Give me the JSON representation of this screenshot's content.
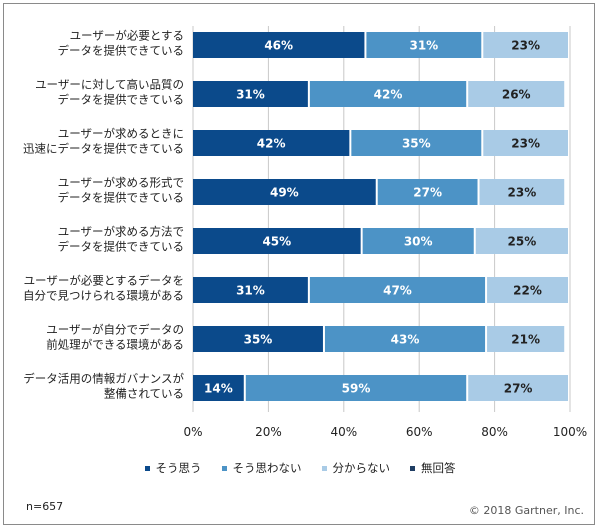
{
  "chart_data": {
    "type": "bar",
    "orientation": "horizontal",
    "stacked": true,
    "categories": [
      [
        "ユーザーが必要とする",
        "データを提供できている"
      ],
      [
        "ユーザーに対して高い品質の",
        "データを提供できている"
      ],
      [
        "ユーザーが求めるときに",
        "迅速にデータを提供できている"
      ],
      [
        "ユーザーが求める形式で",
        "データを提供できている"
      ],
      [
        "ユーザーが求める方法で",
        "データを提供できている"
      ],
      [
        "ユーザーが必要とするデータを",
        "自分で見つけられる環境がある"
      ],
      [
        "ユーザーが自分でデータの",
        "前処理ができる環境がある"
      ],
      [
        "データ活用の情報ガバナンスが",
        "整備されている"
      ]
    ],
    "series": [
      {
        "name": "そう思う",
        "color": "#0b4a8b",
        "label_color": "#ffffff",
        "values": [
          46,
          31,
          42,
          49,
          45,
          31,
          35,
          14
        ]
      },
      {
        "name": "そう思わない",
        "color": "#4c93c6",
        "label_color": "#ffffff",
        "values": [
          31,
          42,
          35,
          27,
          30,
          47,
          43,
          59
        ]
      },
      {
        "name": "分からない",
        "color": "#a9cbe6",
        "label_color": "#222222",
        "values": [
          23,
          26,
          23,
          23,
          25,
          22,
          21,
          27
        ]
      },
      {
        "name": "無回答",
        "color": "#1f3d63",
        "label_color": "#ffffff",
        "values": [
          0,
          0,
          0,
          0,
          0,
          0,
          0,
          0
        ]
      }
    ],
    "x_ticks": [
      "0%",
      "20%",
      "40%",
      "60%",
      "80%",
      "100%"
    ],
    "xlim": [
      0,
      100
    ],
    "grid": true,
    "legend_position": "bottom"
  },
  "footnote": "n=657",
  "copyright": "© 2018 Gartner, Inc."
}
